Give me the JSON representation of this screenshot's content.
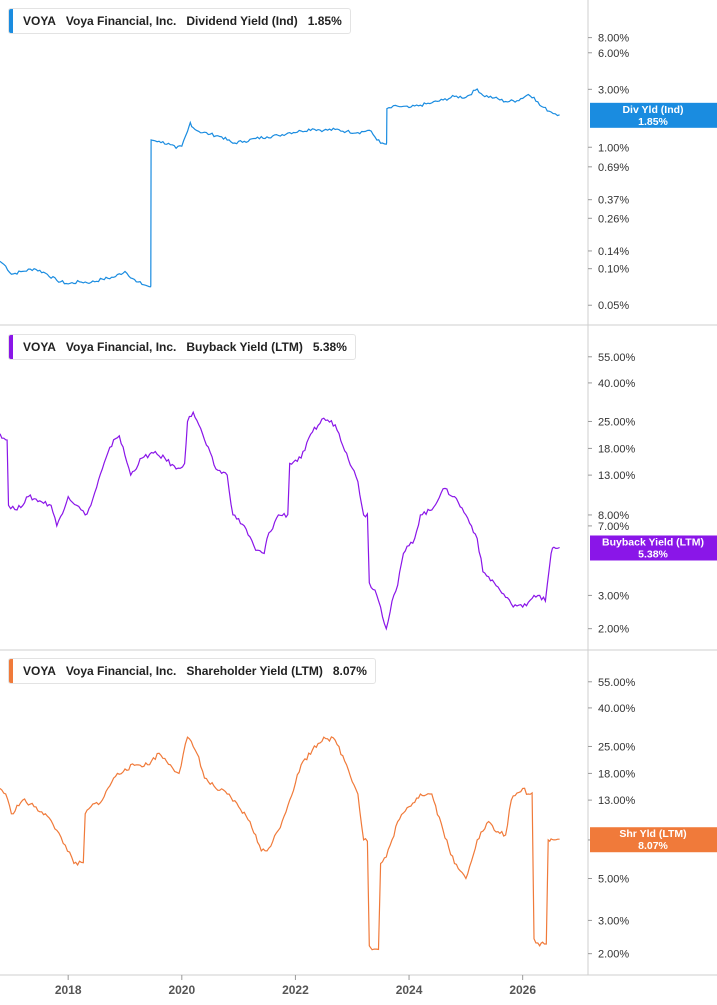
{
  "chart_data": [
    {
      "type": "line",
      "scale": "log",
      "color": "#1a8ce0",
      "ticker": "VOYA",
      "company": "Voya Financial, Inc.",
      "metric": "Dividend Yield (Ind)",
      "current_value": "1.85%",
      "tag_label": "Div Yld (Ind)",
      "ylim": [
        0.0004,
        0.13
      ],
      "y_ticks": [
        {
          "label": "8.00%",
          "value": 0.08
        },
        {
          "label": "6.00%",
          "value": 0.06
        },
        {
          "label": "3.00%",
          "value": 0.03
        },
        {
          "label": "1.00%",
          "value": 0.01
        },
        {
          "label": "0.69%",
          "value": 0.0069
        },
        {
          "label": "0.37%",
          "value": 0.0037
        },
        {
          "label": "0.26%",
          "value": 0.0026
        },
        {
          "label": "0.14%",
          "value": 0.0014
        },
        {
          "label": "0.10%",
          "value": 0.001
        },
        {
          "label": "0.05%",
          "value": 0.0005
        }
      ],
      "series": [
        {
          "x": [
            2016.8,
            2016.9,
            2017.0,
            2017.2,
            2017.4,
            2017.6,
            2017.8,
            2018.0,
            2018.2,
            2018.4,
            2018.6,
            2018.8,
            2019.0,
            2019.2,
            2019.4,
            2019.45,
            2019.46,
            2019.6,
            2019.8,
            2019.9,
            2020.0,
            2020.1,
            2020.15,
            2020.2,
            2020.3,
            2020.5,
            2020.7,
            2020.9,
            2021.1,
            2021.3,
            2021.5,
            2021.7,
            2021.9,
            2022.1,
            2022.3,
            2022.5,
            2022.7,
            2022.9,
            2023.1,
            2023.3,
            2023.5,
            2023.6,
            2023.61,
            2023.8,
            2024.0,
            2024.2,
            2024.4,
            2024.6,
            2024.8,
            2025.0,
            2025.2,
            2025.3,
            2025.5,
            2025.7,
            2025.9,
            2026.1,
            2026.2,
            2026.3,
            2026.5,
            2026.65
          ],
          "y": [
            0.00115,
            0.00105,
            0.0009,
            0.00095,
            0.001,
            0.00092,
            0.0008,
            0.00075,
            0.00078,
            0.00077,
            0.00082,
            0.00085,
            0.00095,
            0.00078,
            0.00072,
            0.00071,
            0.0115,
            0.0112,
            0.0105,
            0.0098,
            0.0102,
            0.0135,
            0.016,
            0.0145,
            0.0135,
            0.0128,
            0.0122,
            0.0108,
            0.0112,
            0.0118,
            0.0122,
            0.0125,
            0.0132,
            0.0136,
            0.0142,
            0.0138,
            0.014,
            0.0135,
            0.0132,
            0.0138,
            0.0108,
            0.0106,
            0.0208,
            0.0218,
            0.0212,
            0.0222,
            0.0232,
            0.0245,
            0.0262,
            0.0258,
            0.0302,
            0.0268,
            0.0255,
            0.0238,
            0.0242,
            0.0272,
            0.0258,
            0.0222,
            0.0195,
            0.0185
          ]
        }
      ]
    },
    {
      "type": "line",
      "scale": "log",
      "color": "#8a16e8",
      "ticker": "VOYA",
      "company": "Voya Financial, Inc.",
      "metric": "Buyback Yield (LTM)",
      "current_value": "5.38%",
      "tag_label": "Buyback Yield (LTM)",
      "ylim": [
        0.017,
        0.7
      ],
      "y_ticks": [
        {
          "label": "55.00%",
          "value": 0.55
        },
        {
          "label": "40.00%",
          "value": 0.4
        },
        {
          "label": "25.00%",
          "value": 0.25
        },
        {
          "label": "18.00%",
          "value": 0.18
        },
        {
          "label": "13.00%",
          "value": 0.13
        },
        {
          "label": "8.00%",
          "value": 0.08
        },
        {
          "label": "7.00%",
          "value": 0.07
        },
        {
          "label": "3.00%",
          "value": 0.03
        },
        {
          "label": "2.00%",
          "value": 0.02
        }
      ],
      "series": [
        {
          "x": [
            2016.8,
            2016.9,
            2016.95,
            2017.1,
            2017.3,
            2017.5,
            2017.7,
            2017.8,
            2018.0,
            2018.15,
            2018.3,
            2018.4,
            2018.6,
            2018.8,
            2018.9,
            2019.1,
            2019.3,
            2019.5,
            2019.7,
            2019.9,
            2020.05,
            2020.1,
            2020.2,
            2020.3,
            2020.4,
            2020.6,
            2020.8,
            2020.9,
            2021.1,
            2021.3,
            2021.45,
            2021.5,
            2021.7,
            2021.9,
            2022.1,
            2022.3,
            2022.5,
            2022.7,
            2022.9,
            2023.1,
            2023.2,
            2023.3,
            2023.4,
            2023.5,
            2023.6,
            2023.7,
            2023.8,
            2023.9,
            2024.0,
            2024.1,
            2024.2,
            2024.4,
            2024.6,
            2024.8,
            2025.0,
            2025.1,
            2025.2,
            2025.3,
            2025.5,
            2025.6,
            2025.8,
            2026.0,
            2026.2,
            2026.3,
            2026.4,
            2026.5,
            2026.55,
            2026.65
          ],
          "y": [
            0.215,
            0.2,
            0.09,
            0.085,
            0.1,
            0.095,
            0.09,
            0.07,
            0.1,
            0.09,
            0.08,
            0.09,
            0.14,
            0.2,
            0.21,
            0.13,
            0.16,
            0.17,
            0.16,
            0.14,
            0.15,
            0.25,
            0.28,
            0.24,
            0.2,
            0.14,
            0.13,
            0.08,
            0.07,
            0.052,
            0.05,
            0.06,
            0.08,
            0.15,
            0.16,
            0.22,
            0.26,
            0.24,
            0.17,
            0.12,
            0.08,
            0.035,
            0.032,
            0.026,
            0.02,
            0.028,
            0.034,
            0.05,
            0.055,
            0.06,
            0.08,
            0.085,
            0.11,
            0.1,
            0.08,
            0.07,
            0.06,
            0.04,
            0.035,
            0.032,
            0.027,
            0.026,
            0.03,
            0.03,
            0.028,
            0.05,
            0.054,
            0.0538
          ]
        }
      ]
    },
    {
      "type": "line",
      "scale": "log",
      "color": "#f07a3a",
      "ticker": "VOYA",
      "company": "Voya Financial, Inc.",
      "metric": "Shareholder Yield (LTM)",
      "current_value": "8.07%",
      "tag_label": "Shr Yld (LTM)",
      "ylim": [
        0.017,
        0.7
      ],
      "y_ticks": [
        {
          "label": "55.00%",
          "value": 0.55
        },
        {
          "label": "40.00%",
          "value": 0.4
        },
        {
          "label": "25.00%",
          "value": 0.25
        },
        {
          "label": "18.00%",
          "value": 0.18
        },
        {
          "label": "13.00%",
          "value": 0.13
        },
        {
          "label": "8.00%",
          "value": 0.08
        },
        {
          "label": "5.00%",
          "value": 0.05
        },
        {
          "label": "3.00%",
          "value": 0.03
        },
        {
          "label": "2.00%",
          "value": 0.02
        }
      ],
      "x_ticks": [
        "2018",
        "2020",
        "2022",
        "2024",
        "2026"
      ],
      "x_tick_values": [
        2018,
        2020,
        2022,
        2024,
        2026
      ],
      "xlim": [
        2016.8,
        2027.15
      ],
      "series": [
        {
          "x": [
            2016.8,
            2016.9,
            2017.0,
            2017.2,
            2017.4,
            2017.6,
            2017.8,
            2017.95,
            2018.1,
            2018.3,
            2018.4,
            2018.6,
            2018.8,
            2019.0,
            2019.2,
            2019.4,
            2019.6,
            2019.8,
            2019.95,
            2020.1,
            2020.2,
            2020.3,
            2020.4,
            2020.6,
            2020.8,
            2021.0,
            2021.2,
            2021.4,
            2021.5,
            2021.7,
            2021.9,
            2022.1,
            2022.3,
            2022.5,
            2022.7,
            2022.9,
            2023.1,
            2023.2,
            2023.3,
            2023.35,
            2023.5,
            2023.6,
            2023.7,
            2023.8,
            2024.0,
            2024.2,
            2024.4,
            2024.6,
            2024.8,
            2025.0,
            2025.2,
            2025.4,
            2025.5,
            2025.7,
            2025.8,
            2026.0,
            2026.1,
            2026.2,
            2026.3,
            2026.35,
            2026.45,
            2026.5,
            2026.55,
            2026.65
          ],
          "y": [
            0.15,
            0.14,
            0.11,
            0.13,
            0.12,
            0.11,
            0.09,
            0.075,
            0.06,
            0.11,
            0.12,
            0.13,
            0.17,
            0.19,
            0.2,
            0.2,
            0.23,
            0.2,
            0.18,
            0.28,
            0.25,
            0.22,
            0.17,
            0.15,
            0.14,
            0.12,
            0.1,
            0.07,
            0.07,
            0.09,
            0.13,
            0.2,
            0.24,
            0.28,
            0.27,
            0.2,
            0.14,
            0.08,
            0.022,
            0.021,
            0.06,
            0.065,
            0.08,
            0.1,
            0.12,
            0.14,
            0.14,
            0.09,
            0.06,
            0.05,
            0.08,
            0.1,
            0.09,
            0.085,
            0.13,
            0.15,
            0.14,
            0.024,
            0.022,
            0.023,
            0.08,
            0.081,
            0.08,
            0.0807
          ]
        }
      ]
    }
  ]
}
